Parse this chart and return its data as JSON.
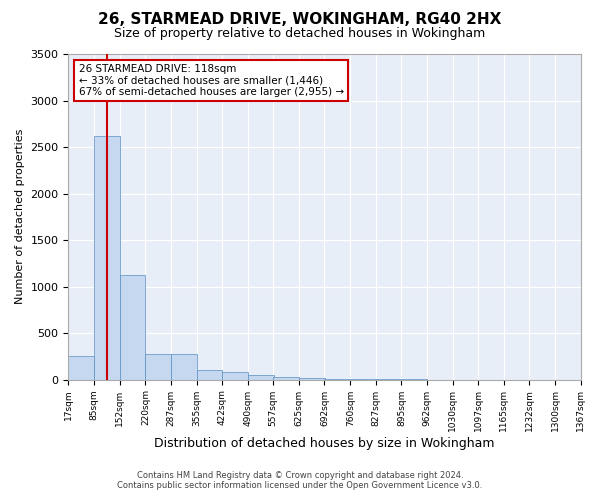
{
  "title1": "26, STARMEAD DRIVE, WOKINGHAM, RG40 2HX",
  "title2": "Size of property relative to detached houses in Wokingham",
  "xlabel": "Distribution of detached houses by size in Wokingham",
  "ylabel": "Number of detached properties",
  "annotation_line1": "26 STARMEAD DRIVE: 118sqm",
  "annotation_line2": "← 33% of detached houses are smaller (1,446)",
  "annotation_line3": "67% of semi-detached houses are larger (2,955) →",
  "property_size_sqm": 118,
  "bin_edges": [
    17,
    85,
    152,
    220,
    287,
    355,
    422,
    490,
    557,
    625,
    692,
    760,
    827,
    895,
    962,
    1030,
    1097,
    1165,
    1232,
    1300,
    1367
  ],
  "bin_counts": [
    250,
    2620,
    1120,
    280,
    270,
    100,
    80,
    50,
    30,
    15,
    8,
    5,
    3,
    2,
    1,
    1,
    1,
    0,
    0,
    1
  ],
  "bar_color": "#c5d8f0",
  "bar_edge_color": "#5a8fc3",
  "vline_color": "#cc0000",
  "vline_x": 118,
  "annotation_box_color": "#ffffff",
  "annotation_box_edge": "#cc0000",
  "background_color": "#e8eef7",
  "footer_line1": "Contains HM Land Registry data © Crown copyright and database right 2024.",
  "footer_line2": "Contains public sector information licensed under the Open Government Licence v3.0.",
  "ylim": [
    0,
    3500
  ],
  "yticks": [
    0,
    500,
    1000,
    1500,
    2000,
    2500,
    3000,
    3500
  ]
}
